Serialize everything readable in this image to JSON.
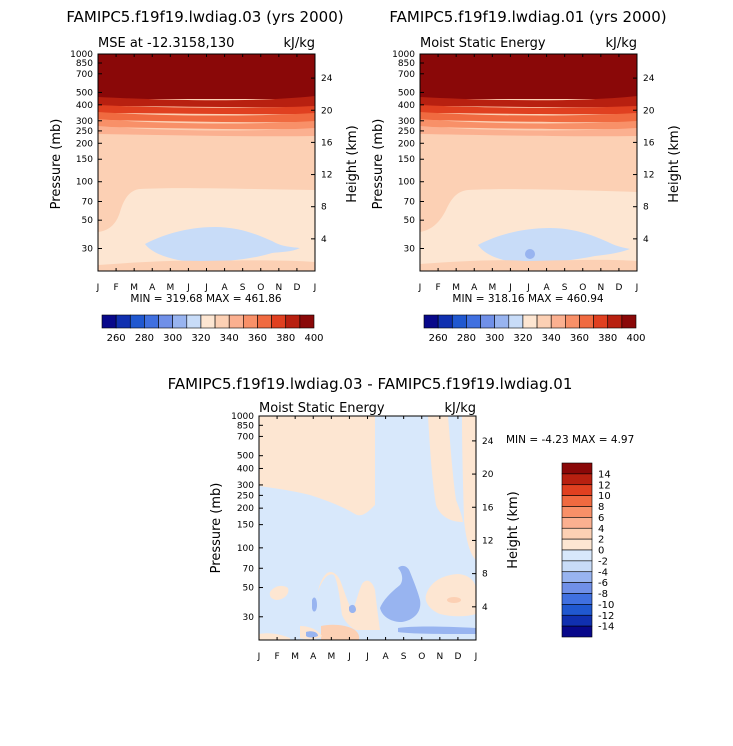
{
  "chart_data": [
    {
      "type": "heatmap",
      "title": "FAMIPC5.f19f19.lwdiag.03 (yrs 2000)",
      "subtitle_left": "MSE at -12.3158,130",
      "subtitle_right": "kJ/kg",
      "ylabel": "Pressure (mb)",
      "ylabel_right": "Height (km)",
      "months": [
        "J",
        "F",
        "M",
        "A",
        "M",
        "J",
        "J",
        "A",
        "S",
        "O",
        "N",
        "D",
        "J"
      ],
      "pressure_ticks": [
        "30",
        "50",
        "70",
        "100",
        "150",
        "200",
        "250",
        "300",
        "400",
        "500",
        "700",
        "850",
        "1000"
      ],
      "height_ticks": [
        "24",
        "20",
        "16",
        "12",
        "8",
        "4"
      ],
      "min_max": "MIN = 319.68 MAX = 461.86",
      "min": 319.68,
      "max": 461.86
    },
    {
      "type": "heatmap",
      "title": "FAMIPC5.f19f19.lwdiag.01 (yrs 2000)",
      "subtitle_left": "Moist Static Energy",
      "subtitle_right": "kJ/kg",
      "ylabel": "Pressure (mb)",
      "ylabel_right": "Height (km)",
      "months": [
        "J",
        "F",
        "M",
        "A",
        "M",
        "J",
        "J",
        "A",
        "S",
        "O",
        "N",
        "D",
        "J"
      ],
      "pressure_ticks": [
        "30",
        "50",
        "70",
        "100",
        "150",
        "200",
        "250",
        "300",
        "400",
        "500",
        "700",
        "850",
        "1000"
      ],
      "height_ticks": [
        "24",
        "20",
        "16",
        "12",
        "8",
        "4"
      ],
      "min_max": "MIN = 318.16 MAX = 460.94",
      "min": 318.16,
      "max": 460.94
    },
    {
      "type": "heatmap",
      "title": "FAMIPC5.f19f19.lwdiag.03 - FAMIPC5.f19f19.lwdiag.01",
      "subtitle_left": "Moist Static Energy",
      "subtitle_right": "kJ/kg",
      "ylabel": "Pressure (mb)",
      "ylabel_right": "Height (km)",
      "months": [
        "J",
        "F",
        "M",
        "A",
        "M",
        "J",
        "J",
        "A",
        "S",
        "O",
        "N",
        "D",
        "J"
      ],
      "pressure_ticks": [
        "30",
        "50",
        "70",
        "100",
        "150",
        "200",
        "250",
        "300",
        "400",
        "500",
        "700",
        "850",
        "1000"
      ],
      "height_ticks": [
        "24",
        "20",
        "16",
        "12",
        "8",
        "4"
      ],
      "min_max": "MIN = -4.23 MAX = 4.97",
      "min": -4.23,
      "max": 4.97
    }
  ],
  "colorbar_main": {
    "colors": [
      "#08088a",
      "#1030b0",
      "#2058d0",
      "#4070e0",
      "#7090e8",
      "#98b4f0",
      "#c8dcf8",
      "#fde6d2",
      "#fcd0b4",
      "#fbb090",
      "#f89068",
      "#f06a40",
      "#e04020",
      "#b82010",
      "#8a0808"
    ],
    "labels": [
      "260",
      "280",
      "300",
      "320",
      "340",
      "360",
      "380",
      "400"
    ]
  },
  "colorbar_diff": {
    "colors": [
      "#08088a",
      "#1030b0",
      "#2058d0",
      "#4070e0",
      "#7090e8",
      "#98b4f0",
      "#c8dcf8",
      "#d8e8fb",
      "#fde6d2",
      "#fcd0b4",
      "#fbb090",
      "#f89068",
      "#f06a40",
      "#e04020",
      "#b82010",
      "#8a0808"
    ],
    "labels": [
      "14",
      "12",
      "10",
      "8",
      "6",
      "4",
      "2",
      "0",
      "-2",
      "-4",
      "-6",
      "-8",
      "-10",
      "-12",
      "-14"
    ]
  }
}
